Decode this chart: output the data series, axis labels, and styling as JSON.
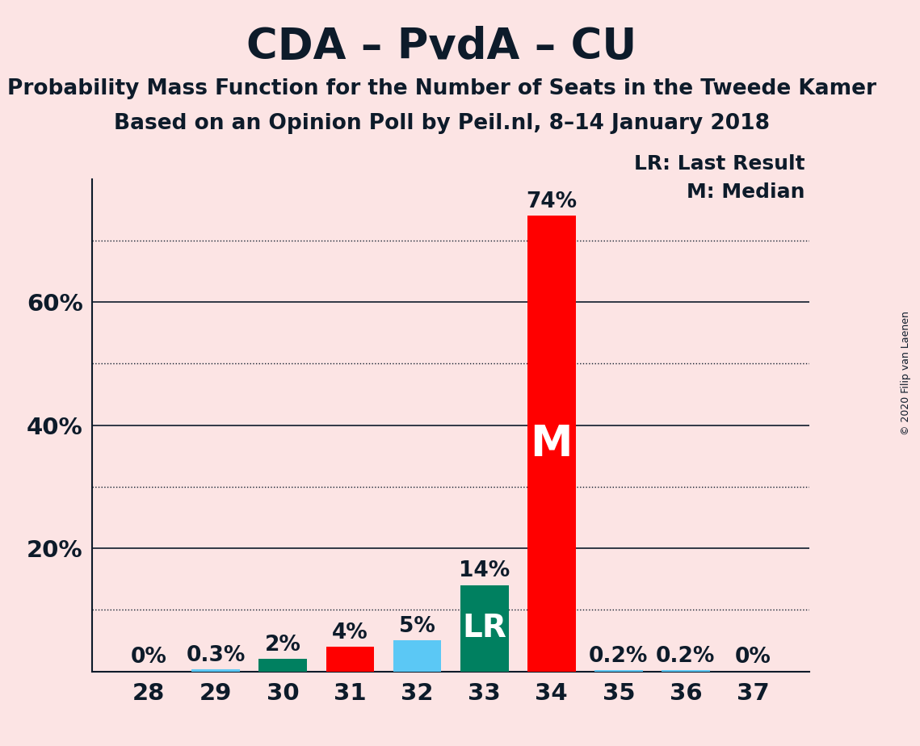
{
  "title": "CDA – PvdA – CU",
  "subtitle1": "Probability Mass Function for the Number of Seats in the Tweede Kamer",
  "subtitle2": "Based on an Opinion Poll by Peil.nl, 8–14 January 2018",
  "copyright": "© 2020 Filip van Laenen",
  "legend_lr": "LR: Last Result",
  "legend_m": "M: Median",
  "x_labels": [
    28,
    29,
    30,
    31,
    32,
    33,
    34,
    35,
    36,
    37
  ],
  "values": [
    0.0,
    0.3,
    2.0,
    4.0,
    5.0,
    14.0,
    74.0,
    0.2,
    0.2,
    0.0
  ],
  "bar_colors": [
    "#5bc8f5",
    "#5bc8f5",
    "#008060",
    "#ff0000",
    "#5bc8f5",
    "#008060",
    "#ff0000",
    "#5bc8f5",
    "#5bc8f5",
    "#5bc8f5"
  ],
  "bar_labels": [
    "0%",
    "0.3%",
    "2%",
    "4%",
    "5%",
    "14%",
    "74%",
    "0.2%",
    "0.2%",
    "0%"
  ],
  "lr_bar": 33,
  "median_bar": 34,
  "lr_label": "LR",
  "median_label": "M",
  "background_color": "#fce4e4",
  "ylim": [
    0,
    80
  ],
  "solid_gridlines": [
    20,
    40,
    60
  ],
  "dotted_gridlines": [
    10,
    30,
    50,
    70
  ],
  "ytick_positions": [
    20,
    40,
    60
  ],
  "ytick_labels": [
    "20%",
    "40%",
    "60%"
  ],
  "grid_color": "#0d1b2a",
  "text_color": "#0d1b2a",
  "title_fontsize": 38,
  "subtitle_fontsize": 19,
  "label_fontsize": 18,
  "tick_fontsize": 21,
  "bar_label_fontsize": 19,
  "bar_inner_fontsize": 28,
  "bar_width": 0.72
}
